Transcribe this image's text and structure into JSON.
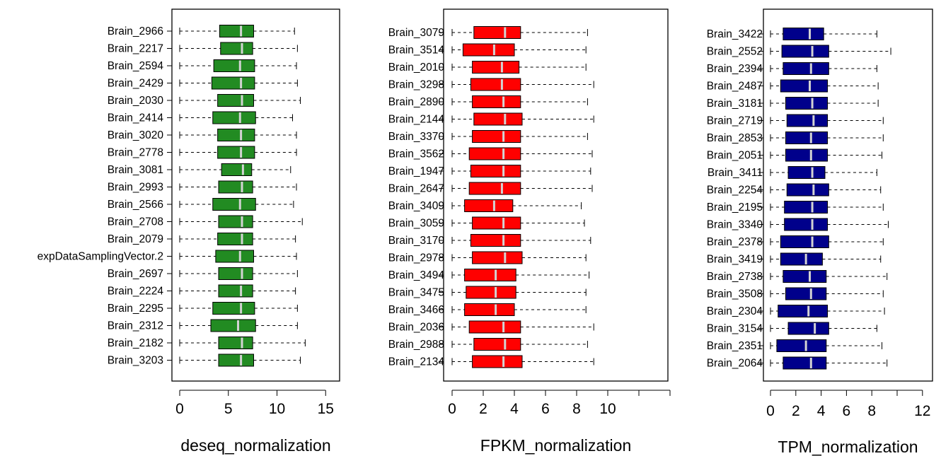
{
  "chart_data": [
    {
      "type": "boxplot",
      "orientation": "horizontal",
      "xlabel": "deseq_normalization",
      "xlim": [
        0,
        15
      ],
      "xticks": [
        "0",
        "5",
        "10",
        "15"
      ],
      "colors": {
        "box": "#228B22",
        "median": "#d3d3d3"
      },
      "series": [
        {
          "name": "Brain_2966",
          "min": 0,
          "q1": 4.1,
          "median": 6.3,
          "q3": 7.6,
          "max": 11.8
        },
        {
          "name": "Brain_2217",
          "min": 0,
          "q1": 4.2,
          "median": 6.4,
          "q3": 7.5,
          "max": 12.1
        },
        {
          "name": "Brain_2594",
          "min": 0,
          "q1": 3.5,
          "median": 6.2,
          "q3": 7.7,
          "max": 12.0
        },
        {
          "name": "Brain_2429",
          "min": 0,
          "q1": 3.3,
          "median": 6.3,
          "q3": 7.7,
          "max": 12.1
        },
        {
          "name": "Brain_2030",
          "min": 0,
          "q1": 3.9,
          "median": 6.4,
          "q3": 7.6,
          "max": 12.4
        },
        {
          "name": "Brain_2414",
          "min": 0,
          "q1": 3.4,
          "median": 6.2,
          "q3": 7.8,
          "max": 11.6
        },
        {
          "name": "Brain_3020",
          "min": 0,
          "q1": 3.9,
          "median": 6.3,
          "q3": 7.7,
          "max": 12.0
        },
        {
          "name": "Brain_2778",
          "min": 0,
          "q1": 3.9,
          "median": 6.3,
          "q3": 7.7,
          "max": 12.0
        },
        {
          "name": "Brain_3081",
          "min": 0,
          "q1": 4.3,
          "median": 6.5,
          "q3": 7.4,
          "max": 11.4
        },
        {
          "name": "Brain_2993",
          "min": 0,
          "q1": 4.0,
          "median": 6.4,
          "q3": 7.5,
          "max": 12.0
        },
        {
          "name": "Brain_2566",
          "min": 0,
          "q1": 3.4,
          "median": 6.2,
          "q3": 7.8,
          "max": 11.7
        },
        {
          "name": "Brain_2708",
          "min": 0,
          "q1": 4.0,
          "median": 6.4,
          "q3": 7.5,
          "max": 12.6
        },
        {
          "name": "Brain_2079",
          "min": 0,
          "q1": 3.9,
          "median": 6.4,
          "q3": 7.5,
          "max": 11.9
        },
        {
          "name": "expDataSamplingVector.2",
          "min": 0,
          "q1": 3.7,
          "median": 6.2,
          "q3": 7.6,
          "max": 12.0
        },
        {
          "name": "Brain_2697",
          "min": 0,
          "q1": 4.0,
          "median": 6.4,
          "q3": 7.5,
          "max": 12.1
        },
        {
          "name": "Brain_2224",
          "min": 0,
          "q1": 4.0,
          "median": 6.3,
          "q3": 7.5,
          "max": 11.9
        },
        {
          "name": "Brain_2295",
          "min": 0,
          "q1": 3.4,
          "median": 6.3,
          "q3": 7.7,
          "max": 12.1
        },
        {
          "name": "Brain_2312",
          "min": 0,
          "q1": 3.2,
          "median": 6.0,
          "q3": 7.8,
          "max": 12.1
        },
        {
          "name": "Brain_2182",
          "min": 0,
          "q1": 4.0,
          "median": 6.4,
          "q3": 7.5,
          "max": 12.9
        },
        {
          "name": "Brain_3203",
          "min": 0,
          "q1": 4.0,
          "median": 6.3,
          "q3": 7.6,
          "max": 12.4
        }
      ]
    },
    {
      "type": "boxplot",
      "orientation": "horizontal",
      "xlabel": "FPKM_normalization",
      "xlim": [
        0,
        14
      ],
      "xticks": [
        "0",
        "2",
        "4",
        "6",
        "8",
        "10"
      ],
      "colors": {
        "box": "#ff0000",
        "median": "#d3d3d3"
      },
      "series": [
        {
          "name": "Brain_3079",
          "min": 0,
          "q1": 1.4,
          "median": 3.4,
          "q3": 4.4,
          "max": 8.7
        },
        {
          "name": "Brain_3514",
          "min": 0,
          "q1": 0.7,
          "median": 2.7,
          "q3": 4.0,
          "max": 8.6
        },
        {
          "name": "Brain_2010",
          "min": 0,
          "q1": 1.3,
          "median": 3.2,
          "q3": 4.3,
          "max": 8.6
        },
        {
          "name": "Brain_3298",
          "min": 0,
          "q1": 1.2,
          "median": 3.2,
          "q3": 4.4,
          "max": 9.1
        },
        {
          "name": "Brain_2890",
          "min": 0,
          "q1": 1.3,
          "median": 3.3,
          "q3": 4.4,
          "max": 8.7
        },
        {
          "name": "Brain_2144",
          "min": 0,
          "q1": 1.4,
          "median": 3.4,
          "q3": 4.5,
          "max": 9.1
        },
        {
          "name": "Brain_3370",
          "min": 0,
          "q1": 1.3,
          "median": 3.3,
          "q3": 4.4,
          "max": 8.7
        },
        {
          "name": "Brain_3562",
          "min": 0,
          "q1": 1.1,
          "median": 3.3,
          "q3": 4.4,
          "max": 9.0
        },
        {
          "name": "Brain_1947",
          "min": 0,
          "q1": 1.2,
          "median": 3.3,
          "q3": 4.4,
          "max": 8.9
        },
        {
          "name": "Brain_2647",
          "min": 0,
          "q1": 1.1,
          "median": 3.2,
          "q3": 4.4,
          "max": 9.0
        },
        {
          "name": "Brain_3409",
          "min": 0,
          "q1": 0.8,
          "median": 2.7,
          "q3": 3.9,
          "max": 8.3
        },
        {
          "name": "Brain_3059",
          "min": 0,
          "q1": 1.3,
          "median": 3.3,
          "q3": 4.4,
          "max": 8.5
        },
        {
          "name": "Brain_3170",
          "min": 0,
          "q1": 1.2,
          "median": 3.3,
          "q3": 4.4,
          "max": 8.9
        },
        {
          "name": "Brain_2978",
          "min": 0,
          "q1": 1.3,
          "median": 3.4,
          "q3": 4.5,
          "max": 8.6
        },
        {
          "name": "Brain_3494",
          "min": 0,
          "q1": 0.8,
          "median": 2.8,
          "q3": 4.1,
          "max": 8.8
        },
        {
          "name": "Brain_3475",
          "min": 0,
          "q1": 0.9,
          "median": 2.8,
          "q3": 4.1,
          "max": 8.6
        },
        {
          "name": "Brain_3466",
          "min": 0,
          "q1": 0.8,
          "median": 2.8,
          "q3": 4.0,
          "max": 8.6
        },
        {
          "name": "Brain_2036",
          "min": 0,
          "q1": 1.1,
          "median": 3.3,
          "q3": 4.4,
          "max": 9.1
        },
        {
          "name": "Brain_2988",
          "min": 0,
          "q1": 1.4,
          "median": 3.4,
          "q3": 4.4,
          "max": 8.7
        },
        {
          "name": "Brain_2134",
          "min": 0,
          "q1": 1.3,
          "median": 3.3,
          "q3": 4.5,
          "max": 9.1
        }
      ]
    },
    {
      "type": "boxplot",
      "orientation": "horizontal",
      "xlabel": "TPM_normalization",
      "xlim": [
        0,
        12
      ],
      "xticks": [
        "0",
        "2",
        "4",
        "6",
        "8",
        "12"
      ],
      "xtick_values": [
        0,
        2,
        4,
        6,
        8,
        12
      ],
      "colors": {
        "box": "#00008b",
        "median": "#d3d3d3"
      },
      "series": [
        {
          "name": "Brain_3422",
          "min": 0,
          "q1": 1.0,
          "median": 3.1,
          "q3": 4.2,
          "max": 8.4
        },
        {
          "name": "Brain_2552",
          "min": 0,
          "q1": 0.9,
          "median": 3.3,
          "q3": 4.6,
          "max": 9.5
        },
        {
          "name": "Brain_2394",
          "min": 0,
          "q1": 1.0,
          "median": 3.2,
          "q3": 4.6,
          "max": 8.4
        },
        {
          "name": "Brain_2487",
          "min": 0,
          "q1": 0.8,
          "median": 3.1,
          "q3": 4.5,
          "max": 8.5
        },
        {
          "name": "Brain_3181",
          "min": 0,
          "q1": 1.2,
          "median": 3.3,
          "q3": 4.5,
          "max": 8.5
        },
        {
          "name": "Brain_2719",
          "min": 0,
          "q1": 1.3,
          "median": 3.4,
          "q3": 4.5,
          "max": 8.9
        },
        {
          "name": "Brain_2853",
          "min": 0,
          "q1": 1.2,
          "median": 3.2,
          "q3": 4.5,
          "max": 8.9
        },
        {
          "name": "Brain_2051",
          "min": 0,
          "q1": 1.2,
          "median": 3.2,
          "q3": 4.5,
          "max": 8.8
        },
        {
          "name": "Brain_3411",
          "min": 0,
          "q1": 1.4,
          "median": 3.3,
          "q3": 4.3,
          "max": 8.4
        },
        {
          "name": "Brain_2254",
          "min": 0,
          "q1": 1.3,
          "median": 3.4,
          "q3": 4.6,
          "max": 8.7
        },
        {
          "name": "Brain_2195",
          "min": 0,
          "q1": 1.1,
          "median": 3.3,
          "q3": 4.5,
          "max": 8.9
        },
        {
          "name": "Brain_3340",
          "min": 0,
          "q1": 1.1,
          "median": 3.3,
          "q3": 4.5,
          "max": 9.3
        },
        {
          "name": "Brain_2378",
          "min": 0,
          "q1": 0.8,
          "median": 3.3,
          "q3": 4.6,
          "max": 8.9
        },
        {
          "name": "Brain_3419",
          "min": 0,
          "q1": 0.8,
          "median": 2.8,
          "q3": 4.1,
          "max": 8.7
        },
        {
          "name": "Brain_2738",
          "min": 0,
          "q1": 1.0,
          "median": 3.1,
          "q3": 4.4,
          "max": 9.2
        },
        {
          "name": "Brain_3508",
          "min": 0,
          "q1": 1.2,
          "median": 3.2,
          "q3": 4.4,
          "max": 8.9
        },
        {
          "name": "Brain_2304",
          "min": 0,
          "q1": 0.6,
          "median": 3.0,
          "q3": 4.5,
          "max": 9.0
        },
        {
          "name": "Brain_3154",
          "min": 0,
          "q1": 1.4,
          "median": 3.5,
          "q3": 4.6,
          "max": 8.4
        },
        {
          "name": "Brain_2351",
          "min": 0,
          "q1": 0.5,
          "median": 2.8,
          "q3": 4.4,
          "max": 8.8
        },
        {
          "name": "Brain_2064",
          "min": 0,
          "q1": 1.0,
          "median": 3.2,
          "q3": 4.4,
          "max": 9.2
        }
      ]
    }
  ]
}
